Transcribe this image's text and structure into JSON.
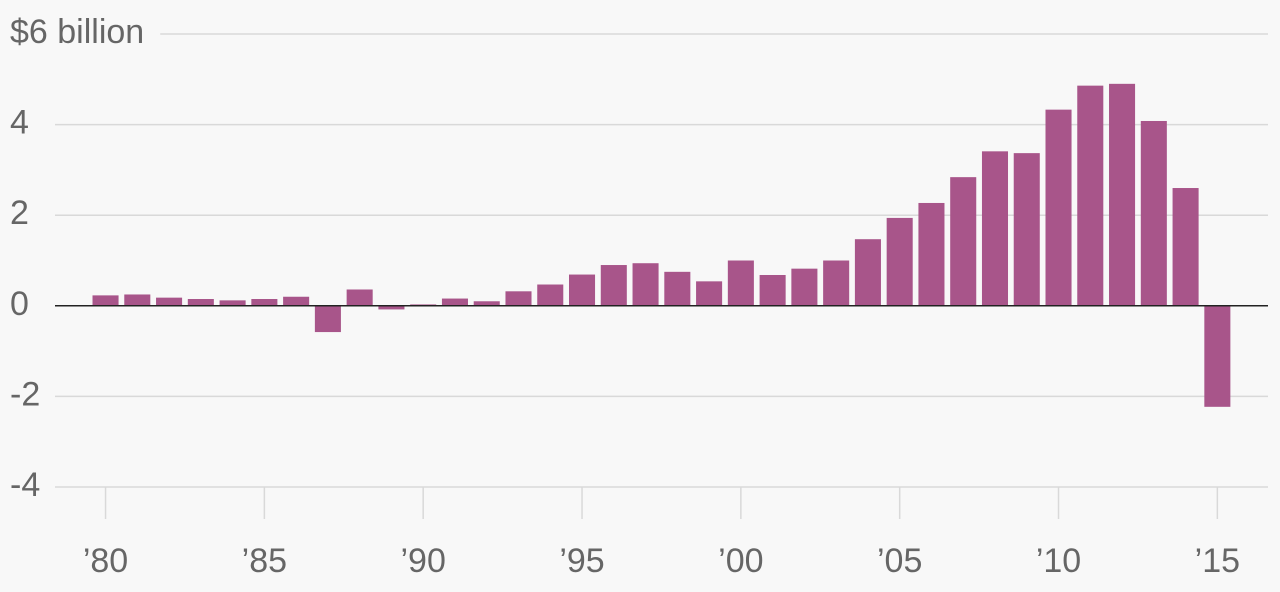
{
  "chart_data": {
    "type": "bar",
    "x": [
      1980,
      1981,
      1982,
      1983,
      1984,
      1985,
      1986,
      1987,
      1988,
      1989,
      1990,
      1991,
      1992,
      1993,
      1994,
      1995,
      1996,
      1997,
      1998,
      1999,
      2000,
      2001,
      2002,
      2003,
      2004,
      2005,
      2006,
      2007,
      2008,
      2009,
      2010,
      2011,
      2012,
      2013,
      2014,
      2015
    ],
    "values": [
      0.23,
      0.25,
      0.18,
      0.15,
      0.12,
      0.15,
      0.2,
      -0.58,
      0.36,
      -0.08,
      0.03,
      0.16,
      0.1,
      0.32,
      0.47,
      0.69,
      0.9,
      0.94,
      0.75,
      0.54,
      1.0,
      0.68,
      0.82,
      1.0,
      1.47,
      1.94,
      2.27,
      2.84,
      3.41,
      3.37,
      4.33,
      4.86,
      4.9,
      4.08,
      2.6,
      -2.23
    ],
    "color": "#a8558a",
    "xlim": [
      1978,
      2016.5
    ],
    "xticks": [
      {
        "value": 1980,
        "label": "’80"
      },
      {
        "value": 1985,
        "label": "’85"
      },
      {
        "value": 1990,
        "label": "’90"
      },
      {
        "value": 1995,
        "label": "’95"
      },
      {
        "value": 2000,
        "label": "’00"
      },
      {
        "value": 2005,
        "label": "’05"
      },
      {
        "value": 2010,
        "label": "’10"
      },
      {
        "value": 2015,
        "label": "’15"
      }
    ],
    "ylim": [
      -4,
      6
    ],
    "yticks": [
      -4,
      -2,
      0,
      2,
      4,
      {
        "value": 6,
        "label": "$6 billion"
      }
    ],
    "grid": true
  }
}
